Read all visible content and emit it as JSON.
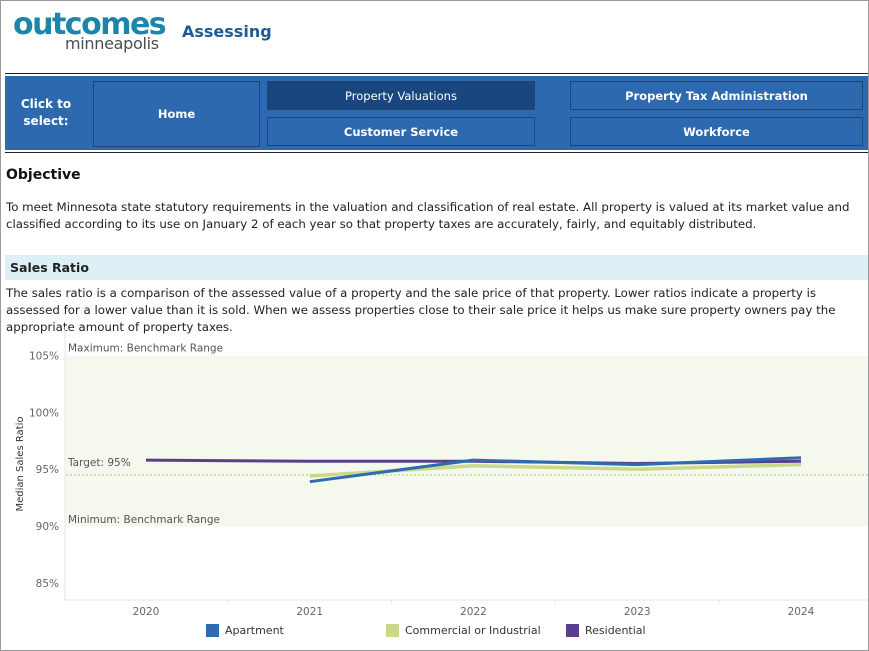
{
  "header": {
    "logo_main": "outcomes",
    "logo_sub": "minneapolis",
    "title": "Assessing"
  },
  "nav": {
    "prompt": "Click to select:",
    "home": "Home",
    "property_valuations": "Property Valuations",
    "customer_service": "Customer Service",
    "property_tax_administration": "Property Tax Administration",
    "workforce": "Workforce"
  },
  "objective": {
    "title": "Objective",
    "text": "To meet Minnesota state statutory requirements in the valuation and classification of real estate. All property is valued at its market value and classified according to its use on January 2 of each year so that property taxes are accurately, fairly, and equitably distributed."
  },
  "sales_ratio": {
    "title": "Sales Ratio",
    "text": "The sales ratio is a comparison of the assessed value of a property and the sale price of that property. Lower ratios indicate a property is assessed for a lower value than it is sold. When we assess properties close to their sale price it helps us make sure property owners pay the appropriate amount of property taxes."
  },
  "colors": {
    "brand_blue": "#2d69ae",
    "selected_nav": "#1a467f",
    "apartment": "#2e6bb0",
    "commercial": "#c8da8a",
    "residential": "#5a3f8c",
    "band_fill": "#f5f8ec"
  },
  "chart_data": {
    "type": "line",
    "ylabel": "Median Sales Ratio",
    "y_ticks": [
      "105%",
      "100%",
      "95%",
      "90%",
      "85%"
    ],
    "y_tick_values": [
      105,
      100,
      95,
      90,
      85
    ],
    "ylim": [
      83.5,
      107.5
    ],
    "categories": [
      "2020",
      "2021",
      "2022",
      "2023",
      "2024"
    ],
    "benchmark": {
      "max": 105,
      "min": 90,
      "target": 95,
      "max_label": "Maximum: Benchmark Range",
      "min_label": "Minimum: Benchmark Range",
      "target_label": "Target: 95%"
    },
    "series": [
      {
        "name": "Apartment",
        "values": [
          null,
          93.9,
          95.8,
          95.4,
          96.0
        ]
      },
      {
        "name": "Commercial or Industrial",
        "values": [
          null,
          94.4,
          95.3,
          95.0,
          95.4
        ]
      },
      {
        "name": "Residential",
        "values": [
          95.8,
          95.7,
          95.7,
          95.5,
          95.7
        ]
      }
    ],
    "legend_position": "bottom"
  }
}
